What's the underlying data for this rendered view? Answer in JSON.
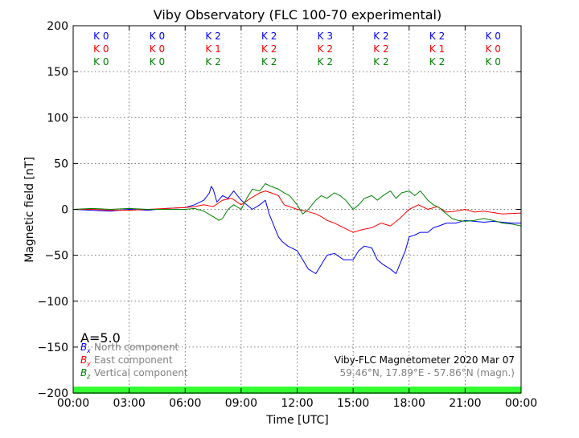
{
  "chart_data": {
    "type": "line",
    "title": "Viby Observatory (FLC 100-70 experimental)",
    "xlabel": "Time [UTC]",
    "ylabel": "Magnetic field [nT]",
    "xlim": [
      0,
      24
    ],
    "ylim": [
      -200,
      200
    ],
    "grid": true,
    "x_ticks": [
      0,
      3,
      6,
      9,
      12,
      15,
      18,
      21,
      24
    ],
    "x_tick_labels": [
      "00:00",
      "03:00",
      "06:00",
      "09:00",
      "12:00",
      "15:00",
      "18:00",
      "21:00",
      "00:00"
    ],
    "y_ticks": [
      -200,
      -150,
      -100,
      -50,
      0,
      50,
      100,
      150,
      200
    ],
    "y_tick_labels": [
      "−200",
      "−150",
      "−100",
      "−50",
      "0",
      "50",
      "100",
      "150",
      "200"
    ],
    "k_index": {
      "rows": [
        {
          "color": "#0000ff",
          "labels": [
            "K 0",
            "K 0",
            "K 2",
            "K 2",
            "K 3",
            "K 2",
            "K 2",
            "K 0"
          ]
        },
        {
          "color": "#ff0000",
          "labels": [
            "K 0",
            "K 0",
            "K 1",
            "K 2",
            "K 2",
            "K 2",
            "K 1",
            "K 0"
          ]
        },
        {
          "color": "#008000",
          "labels": [
            "K 0",
            "K 0",
            "K 2",
            "K 2",
            "K 2",
            "K 2",
            "K 2",
            "K 0"
          ]
        }
      ]
    },
    "activity_index": "A=5.0",
    "activity_bar_color": "#33ff33",
    "legend_position": "lower-left",
    "legend": [
      {
        "symbol": "B",
        "sub": "x",
        "label": "North component",
        "color": "#0000ff"
      },
      {
        "symbol": "B",
        "sub": "y",
        "label": "East component",
        "color": "#ff0000"
      },
      {
        "symbol": "B",
        "sub": "z",
        "label": "Vertical component",
        "color": "#008000"
      }
    ],
    "annotation_line1": "Viby-FLC Magnetometer 2020 Mar 07",
    "annotation_line2": "59.46°N, 17.89°E - 57.86°N (magn.)",
    "series": [
      {
        "name": "North component",
        "color": "#0000ff",
        "x": [
          0,
          1,
          2,
          3,
          4,
          5,
          6,
          6.5,
          7,
          7.3,
          7.4,
          7.5,
          7.7,
          8,
          8.3,
          8.6,
          9,
          9.3,
          9.6,
          10,
          10.3,
          10.5,
          10.8,
          11,
          11.2,
          11.5,
          12,
          12.3,
          12.6,
          13,
          13.3,
          13.6,
          14,
          14.5,
          15,
          15.3,
          15.6,
          16,
          16.3,
          16.6,
          17,
          17.3,
          17.5,
          17.8,
          18,
          18.3,
          18.6,
          19,
          19.3,
          19.6,
          20,
          20.5,
          21,
          21.5,
          22,
          22.5,
          23,
          23.5,
          24
        ],
        "y": [
          0,
          -1,
          -2,
          0,
          -1,
          1,
          2,
          5,
          10,
          18,
          25,
          22,
          8,
          15,
          12,
          20,
          10,
          5,
          0,
          5,
          10,
          -5,
          -20,
          -30,
          -35,
          -40,
          -45,
          -55,
          -65,
          -70,
          -60,
          -50,
          -48,
          -55,
          -55,
          -45,
          -40,
          -42,
          -55,
          -60,
          -65,
          -70,
          -60,
          -45,
          -30,
          -28,
          -25,
          -25,
          -20,
          -18,
          -15,
          -15,
          -12,
          -13,
          -14,
          -13,
          -14,
          -15,
          -15
        ]
      },
      {
        "name": "East component",
        "color": "#ff0000",
        "x": [
          0,
          1,
          2,
          3,
          4,
          5,
          6,
          6.5,
          7,
          7.5,
          8,
          8.5,
          9,
          9.5,
          10,
          10.3,
          10.6,
          11,
          11.3,
          11.6,
          12,
          12.5,
          13,
          13.3,
          13.6,
          14,
          14.5,
          15,
          15.5,
          16,
          16.5,
          17,
          17.5,
          18,
          18.5,
          19,
          19.5,
          20,
          20.5,
          21,
          21.5,
          22,
          23,
          24
        ],
        "y": [
          0,
          0,
          -1,
          -1,
          0,
          1,
          2,
          3,
          5,
          3,
          10,
          12,
          5,
          12,
          18,
          20,
          18,
          15,
          5,
          3,
          0,
          -2,
          -5,
          -8,
          -12,
          -15,
          -20,
          -25,
          -22,
          -20,
          -15,
          -18,
          -10,
          0,
          5,
          0,
          3,
          -3,
          -2,
          0,
          -3,
          -2,
          -5,
          -4
        ]
      },
      {
        "name": "Vertical component",
        "color": "#008000",
        "x": [
          0,
          1,
          2,
          3,
          4,
          5,
          6,
          6.5,
          7,
          7.5,
          7.8,
          8,
          8.3,
          8.6,
          9,
          9.3,
          9.6,
          10,
          10.3,
          10.6,
          11,
          11.3,
          11.6,
          12,
          12.3,
          12.6,
          13,
          13.3,
          13.6,
          14,
          14.3,
          14.6,
          15,
          15.3,
          15.6,
          16,
          16.3,
          16.6,
          17,
          17.3,
          17.6,
          18,
          18.3,
          18.6,
          19,
          19.3,
          19.6,
          20,
          20.3,
          20.6,
          21,
          21.5,
          22,
          22.5,
          23,
          23.5,
          24
        ],
        "y": [
          0,
          1,
          0,
          1,
          0,
          0,
          0,
          1,
          -2,
          -8,
          -12,
          -10,
          0,
          5,
          0,
          12,
          22,
          20,
          28,
          25,
          22,
          18,
          15,
          5,
          -5,
          0,
          10,
          15,
          12,
          18,
          15,
          10,
          0,
          5,
          12,
          15,
          10,
          15,
          20,
          12,
          18,
          20,
          15,
          20,
          10,
          5,
          2,
          -5,
          -10,
          -12,
          -13,
          -12,
          -10,
          -12,
          -15,
          -16,
          -18
        ]
      }
    ]
  }
}
